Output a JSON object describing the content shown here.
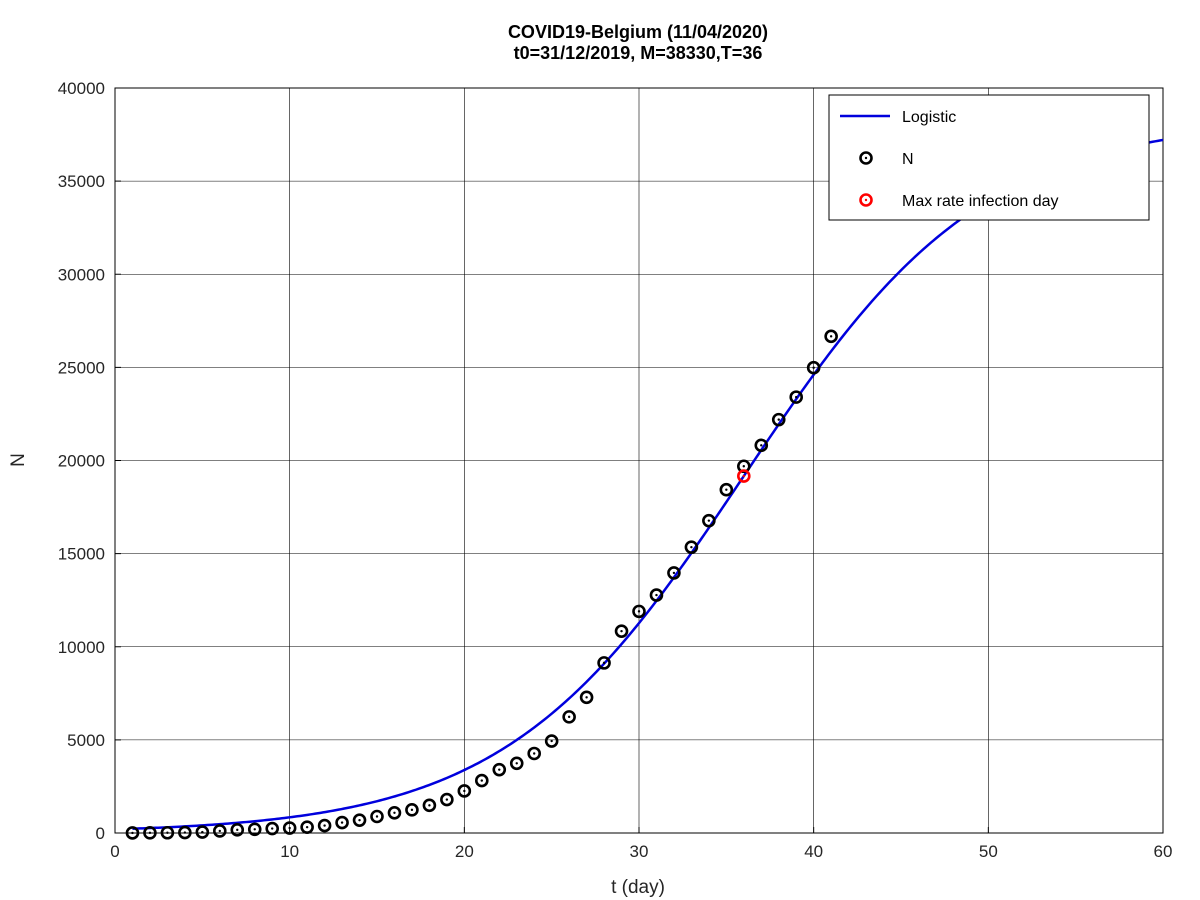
{
  "chart_data": {
    "type": "scatter",
    "title_line1": "COVID19-Belgium (11/04/2020)",
    "title_line2": "t0=31/12/2019, M=38330,T=36",
    "xlabel": "t (day)",
    "ylabel": "N",
    "xlim": [
      0,
      60
    ],
    "ylim": [
      0,
      40000
    ],
    "xticks": [
      0,
      10,
      20,
      30,
      40,
      50,
      60
    ],
    "yticks": [
      0,
      5000,
      10000,
      15000,
      20000,
      25000,
      30000,
      35000,
      40000
    ],
    "grid": true,
    "legend_position": "top-right",
    "legend": {
      "logistic": "Logistic",
      "observed": "N",
      "max_rate": "Max rate infection day"
    },
    "colors": {
      "logistic": "#0000dd",
      "observed": "#000000",
      "max_rate": "#ff0000"
    },
    "logistic": {
      "M": 38330,
      "T": 36,
      "k": 0.146,
      "x_range": [
        1,
        60
      ]
    },
    "series": [
      {
        "name": "N",
        "x": [
          1,
          2,
          3,
          4,
          5,
          6,
          7,
          8,
          9,
          10,
          11,
          12,
          13,
          14,
          15,
          16,
          17,
          18,
          19,
          20,
          21,
          22,
          23,
          24,
          25,
          26,
          27,
          28,
          29,
          30,
          31,
          32,
          33,
          34,
          35,
          36,
          37,
          38,
          39,
          40,
          41
        ],
        "values": [
          2,
          8,
          13,
          23,
          50,
          109,
          169,
          200,
          239,
          267,
          314,
          399,
          559,
          689,
          886,
          1085,
          1243,
          1486,
          1795,
          2257,
          2815,
          3401,
          3743,
          4269,
          4937,
          6235,
          7284,
          9134,
          10836,
          11899,
          12775,
          13964,
          15348,
          16770,
          18431,
          19691,
          20814,
          22194,
          23403,
          24983,
          26667
        ]
      }
    ],
    "max_rate_point": {
      "x": 36,
      "y": 19165
    }
  }
}
